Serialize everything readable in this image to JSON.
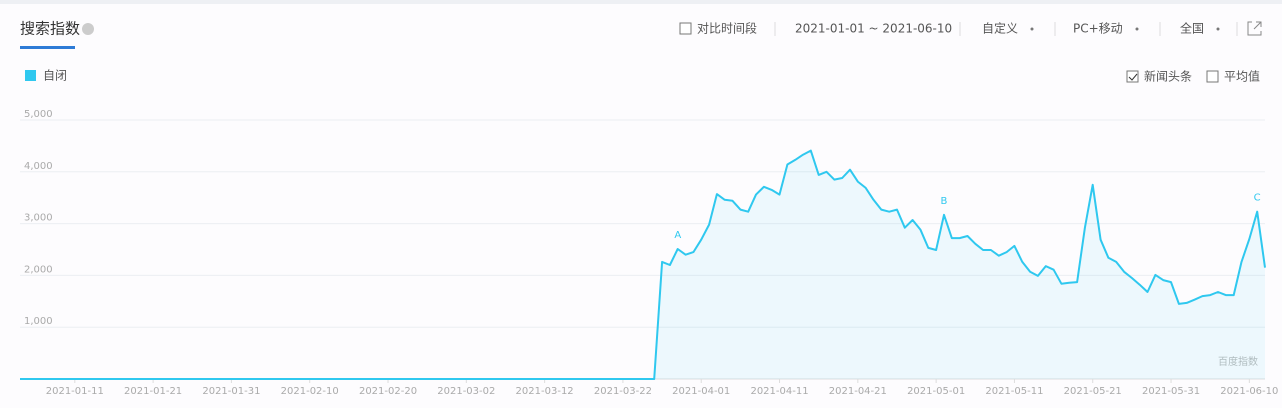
{
  "header": {
    "title": "搜索指数",
    "compare": {
      "label": "对比时间段",
      "checked": false
    },
    "date_range": "2021-01-01 ~ 2021-06-10",
    "period": "自定义",
    "device": "PC+移动",
    "region": "全国"
  },
  "options": [
    {
      "label": "新闻头条",
      "checked": true
    },
    {
      "label": "平均值",
      "checked": false
    }
  ],
  "watermark": "百度指数",
  "chart_data": {
    "type": "line",
    "series": [
      {
        "name": "自闭",
        "color": "#2fc8ef",
        "x": [
          "2021-01-04",
          "2021-03-26",
          "2021-03-27",
          "2021-03-28",
          "2021-03-29",
          "2021-03-30",
          "2021-03-31",
          "2021-04-01",
          "2021-04-02",
          "2021-04-03",
          "2021-04-04",
          "2021-04-05",
          "2021-04-06",
          "2021-04-07",
          "2021-04-08",
          "2021-04-09",
          "2021-04-10",
          "2021-04-11",
          "2021-04-12",
          "2021-04-13",
          "2021-04-14",
          "2021-04-15",
          "2021-04-16",
          "2021-04-17",
          "2021-04-18",
          "2021-04-19",
          "2021-04-20",
          "2021-04-21",
          "2021-04-22",
          "2021-04-23",
          "2021-04-24",
          "2021-04-25",
          "2021-04-26",
          "2021-04-27",
          "2021-04-28",
          "2021-04-29",
          "2021-04-30",
          "2021-05-01",
          "2021-05-02",
          "2021-05-03",
          "2021-05-04",
          "2021-05-05",
          "2021-05-06",
          "2021-05-07",
          "2021-05-08",
          "2021-05-09",
          "2021-05-10",
          "2021-05-11",
          "2021-05-12",
          "2021-05-13",
          "2021-05-14",
          "2021-05-15",
          "2021-05-16",
          "2021-05-17",
          "2021-05-18",
          "2021-05-19",
          "2021-05-20",
          "2021-05-21",
          "2021-05-22",
          "2021-05-23",
          "2021-05-24",
          "2021-05-25",
          "2021-05-26",
          "2021-05-27",
          "2021-05-28",
          "2021-05-29",
          "2021-05-30",
          "2021-05-31",
          "2021-06-01",
          "2021-06-02",
          "2021-06-03",
          "2021-06-04",
          "2021-06-05",
          "2021-06-06",
          "2021-06-07",
          "2021-06-08",
          "2021-06-09",
          "2021-06-10",
          "2021-06-11",
          "2021-06-12"
        ],
        "values": [
          0,
          0,
          2260,
          2200,
          2510,
          2400,
          2450,
          2690,
          2980,
          3570,
          3460,
          3440,
          3270,
          3230,
          3560,
          3710,
          3650,
          3560,
          4140,
          4230,
          4330,
          4410,
          3940,
          4000,
          3850,
          3880,
          4040,
          3810,
          3690,
          3460,
          3270,
          3230,
          3270,
          2920,
          3070,
          2880,
          2530,
          2490,
          3170,
          2720,
          2720,
          2760,
          2610,
          2490,
          2490,
          2380,
          2450,
          2570,
          2260,
          2070,
          1990,
          2180,
          2110,
          1840,
          1860,
          1870,
          2920,
          3750,
          2690,
          2340,
          2260,
          2070,
          1950,
          1820,
          1680,
          2010,
          1910,
          1870,
          1450,
          1470,
          1530,
          1600,
          1620,
          1680,
          1620,
          1620,
          2260,
          2700,
          3230,
          2150
        ]
      }
    ],
    "annotations": [
      {
        "x": "2021-03-29",
        "text": "A"
      },
      {
        "x": "2021-05-02",
        "text": "B"
      },
      {
        "x": "2021-06-11",
        "text": "C"
      }
    ],
    "xlim": [
      "2021-01-04",
      "2021-06-12"
    ],
    "xticks": [
      "2021-01-11",
      "2021-01-21",
      "2021-01-31",
      "2021-02-10",
      "2021-02-20",
      "2021-03-02",
      "2021-03-12",
      "2021-03-22",
      "2021-04-01",
      "2021-04-11",
      "2021-04-21",
      "2021-05-01",
      "2021-05-11",
      "2021-05-21",
      "2021-05-31",
      "2021-06-10"
    ],
    "ylim": [
      0,
      5000
    ],
    "yticks": [
      {
        "value": 1000,
        "label": "1,000"
      },
      {
        "value": 2000,
        "label": "2,000"
      },
      {
        "value": 3000,
        "label": "3,000"
      },
      {
        "value": 4000,
        "label": "4,000"
      },
      {
        "value": 5000,
        "label": "5,000"
      }
    ],
    "grid": true
  }
}
